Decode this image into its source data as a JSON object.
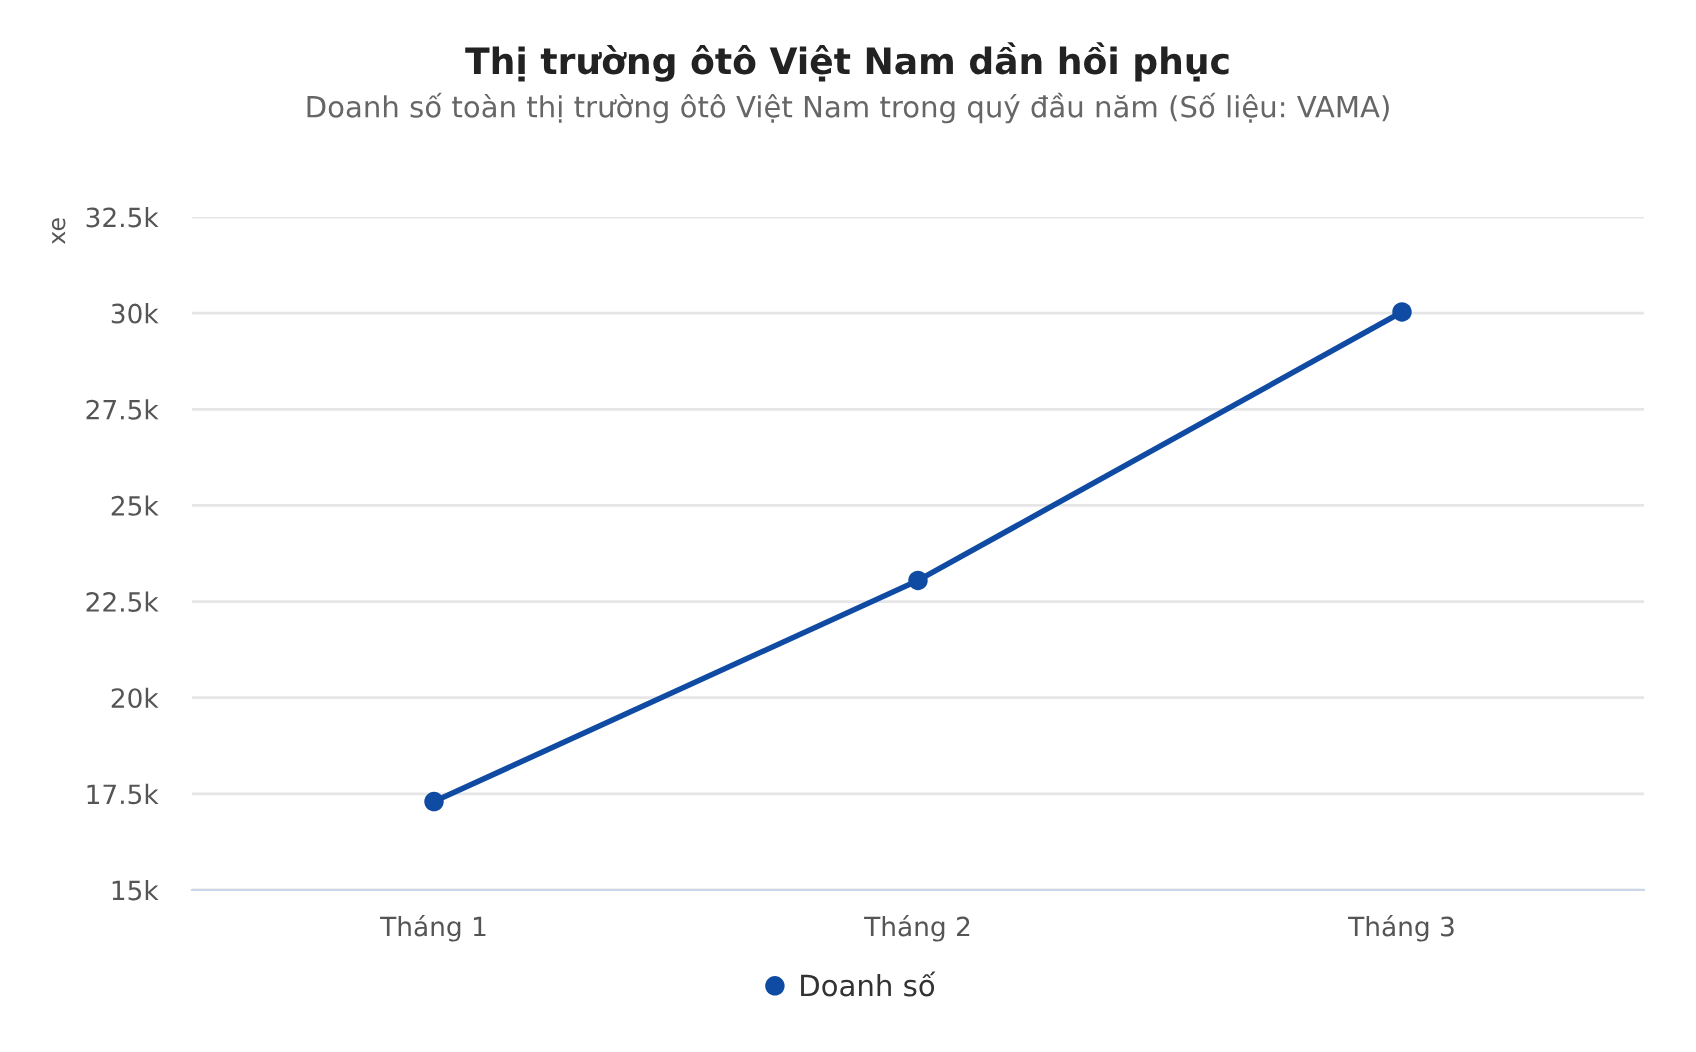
{
  "chart_data": {
    "type": "line",
    "title": "Thị trường ôtô Việt Nam dần hồi phục",
    "subtitle": "Doanh số toàn thị trường ôtô Việt Nam trong quý đầu năm (Số liệu: VAMA)",
    "ylabel": "xe",
    "categories": [
      "Tháng 1",
      "Tháng 2",
      "Tháng 3"
    ],
    "series": [
      {
        "name": "Doanh số",
        "color": "#0f4aa3",
        "values": [
          17300,
          23050,
          30030
        ]
      }
    ],
    "ylim": [
      15000,
      32500
    ],
    "yticks": [
      {
        "value": 15000,
        "label": "15k"
      },
      {
        "value": 17500,
        "label": "17.5k"
      },
      {
        "value": 20000,
        "label": "20k"
      },
      {
        "value": 22500,
        "label": "22.5k"
      },
      {
        "value": 25000,
        "label": "25k"
      },
      {
        "value": 27500,
        "label": "27.5k"
      },
      {
        "value": 30000,
        "label": "30k"
      },
      {
        "value": 32500,
        "label": "32.5k"
      }
    ],
    "grid": "y",
    "legend": "bottom",
    "marker": "circle",
    "line_style": "solid"
  }
}
